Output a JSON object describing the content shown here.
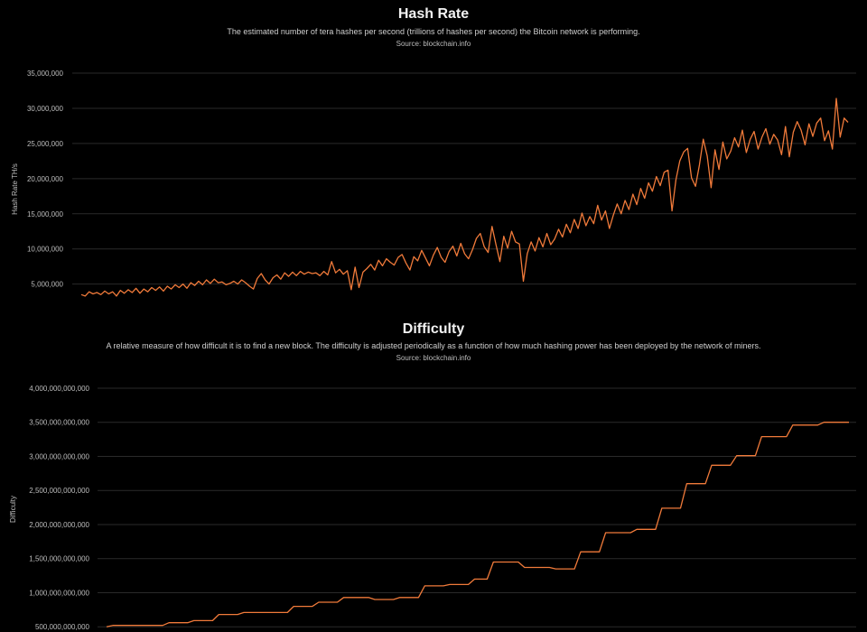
{
  "colors": {
    "background": "#000000",
    "series": "#f07a3a",
    "grid": "#2a2a2a",
    "text": "#d9d9d9"
  },
  "hash_rate": {
    "title": "Hash Rate",
    "subtitle": "The estimated number of tera hashes per second (trillions of hashes per second) the Bitcoin network is performing.",
    "source": "Source: blockchain.info"
  },
  "difficulty": {
    "title": "Difficulty",
    "subtitle": "A relative measure of how difficult it is to find a new block. The difficulty is adjusted periodically as a function of how much hashing power has been deployed by the network of miners.",
    "source": "Source: blockchain.info"
  },
  "chart_data": [
    {
      "type": "line",
      "title": "Hash Rate",
      "ylabel": "Hash Rate TH/s",
      "xlabel": "",
      "ylim": [
        2000000,
        35000000
      ],
      "yticks": [
        5000000,
        10000000,
        15000000,
        20000000,
        25000000,
        30000000,
        35000000
      ],
      "ytick_labels": [
        "5,000,000",
        "10,000,000",
        "15,000,000",
        "20,000,000",
        "25,000,000",
        "30,000,000",
        "35,000,000"
      ],
      "grid": true,
      "series": [
        {
          "values": [
            3500000,
            3300000,
            3900000,
            3600000,
            3800000,
            3500000,
            4000000,
            3600000,
            3900000,
            3300000,
            4100000,
            3700000,
            4200000,
            3800000,
            4400000,
            3700000,
            4300000,
            3900000,
            4500000,
            4100000,
            4600000,
            4000000,
            4700000,
            4300000,
            4900000,
            4500000,
            5000000,
            4400000,
            5200000,
            4800000,
            5400000,
            4900000,
            5600000,
            5100000,
            5700000,
            5200000,
            5300000,
            4900000,
            5100000,
            5400000,
            5000000,
            5600000,
            5200000,
            4700000,
            4300000,
            5800000,
            6500000,
            5600000,
            5000000,
            5900000,
            6300000,
            5700000,
            6600000,
            6100000,
            6700000,
            6200000,
            6800000,
            6400000,
            6700000,
            6500000,
            6600000,
            6200000,
            6800000,
            6300000,
            8200000,
            6600000,
            7100000,
            6400000,
            6900000,
            4200000,
            7400000,
            4500000,
            6700000,
            7200000,
            7800000,
            7000000,
            8400000,
            7600000,
            8600000,
            8100000,
            7700000,
            8800000,
            9200000,
            8000000,
            7000000,
            8900000,
            8300000,
            9800000,
            8700000,
            7600000,
            9100000,
            10200000,
            8800000,
            8100000,
            9600000,
            10400000,
            9000000,
            10800000,
            9300000,
            8600000,
            9900000,
            11500000,
            12200000,
            10300000,
            9500000,
            13200000,
            10600000,
            8200000,
            11800000,
            10100000,
            12500000,
            11000000,
            10700000,
            5400000,
            9300000,
            11000000,
            9700000,
            11600000,
            10300000,
            12200000,
            10600000,
            11400000,
            12800000,
            11700000,
            13500000,
            12300000,
            14200000,
            12900000,
            15100000,
            13300000,
            14600000,
            13600000,
            16200000,
            14100000,
            15400000,
            12900000,
            14800000,
            16400000,
            15000000,
            16900000,
            15600000,
            17800000,
            16300000,
            18600000,
            17200000,
            19400000,
            18200000,
            20300000,
            19000000,
            20900000,
            21200000,
            15400000,
            19800000,
            22500000,
            23800000,
            24300000,
            20100000,
            18900000,
            21900000,
            25600000,
            23200000,
            18700000,
            24100000,
            21300000,
            25200000,
            22800000,
            23900000,
            25800000,
            24500000,
            26900000,
            23700000,
            25600000,
            26700000,
            24200000,
            25900000,
            27100000,
            24900000,
            26300000,
            25500000,
            23400000,
            27400000,
            23100000,
            26600000,
            28100000,
            26900000,
            24800000,
            27800000,
            26000000,
            27900000,
            28600000,
            25400000,
            26800000,
            24200000,
            31400000,
            25900000,
            28600000,
            28000000
          ]
        }
      ]
    },
    {
      "type": "line",
      "title": "Difficulty",
      "ylabel": "Difficulty",
      "xlabel": "",
      "ylim": [
        450000000000,
        4000000000000
      ],
      "yticks": [
        500000000000,
        1000000000000,
        1500000000000,
        2000000000000,
        2500000000000,
        3000000000000,
        3500000000000,
        4000000000000
      ],
      "ytick_labels": [
        "500,000,000,000",
        "1,000,000,000,000",
        "1,500,000,000,000",
        "2,000,000,000,000",
        "2,500,000,000,000",
        "3,000,000,000,000",
        "3,500,000,000,000",
        "4,000,000,000,000"
      ],
      "grid": true,
      "series": [
        {
          "values": [
            500000000000,
            520000000000,
            520000000000,
            520000000000,
            520000000000,
            520000000000,
            520000000000,
            520000000000,
            520000000000,
            520000000000,
            560000000000,
            560000000000,
            560000000000,
            560000000000,
            590000000000,
            590000000000,
            590000000000,
            590000000000,
            680000000000,
            680000000000,
            680000000000,
            680000000000,
            710000000000,
            710000000000,
            710000000000,
            710000000000,
            710000000000,
            710000000000,
            710000000000,
            710000000000,
            800000000000,
            800000000000,
            800000000000,
            800000000000,
            860000000000,
            860000000000,
            860000000000,
            860000000000,
            930000000000,
            930000000000,
            930000000000,
            930000000000,
            930000000000,
            900000000000,
            900000000000,
            900000000000,
            900000000000,
            930000000000,
            930000000000,
            930000000000,
            930000000000,
            1100000000000,
            1100000000000,
            1100000000000,
            1100000000000,
            1120000000000,
            1120000000000,
            1120000000000,
            1120000000000,
            1200000000000,
            1200000000000,
            1200000000000,
            1450000000000,
            1450000000000,
            1450000000000,
            1450000000000,
            1450000000000,
            1370000000000,
            1370000000000,
            1370000000000,
            1370000000000,
            1370000000000,
            1350000000000,
            1350000000000,
            1350000000000,
            1350000000000,
            1600000000000,
            1600000000000,
            1600000000000,
            1600000000000,
            1880000000000,
            1880000000000,
            1880000000000,
            1880000000000,
            1880000000000,
            1930000000000,
            1930000000000,
            1930000000000,
            1930000000000,
            2240000000000,
            2240000000000,
            2240000000000,
            2240000000000,
            2600000000000,
            2600000000000,
            2600000000000,
            2600000000000,
            2870000000000,
            2870000000000,
            2870000000000,
            2870000000000,
            3010000000000,
            3010000000000,
            3010000000000,
            3010000000000,
            3290000000000,
            3290000000000,
            3290000000000,
            3290000000000,
            3290000000000,
            3460000000000,
            3460000000000,
            3460000000000,
            3460000000000,
            3460000000000,
            3500000000000,
            3500000000000,
            3500000000000,
            3500000000000,
            3500000000000
          ]
        }
      ]
    }
  ]
}
